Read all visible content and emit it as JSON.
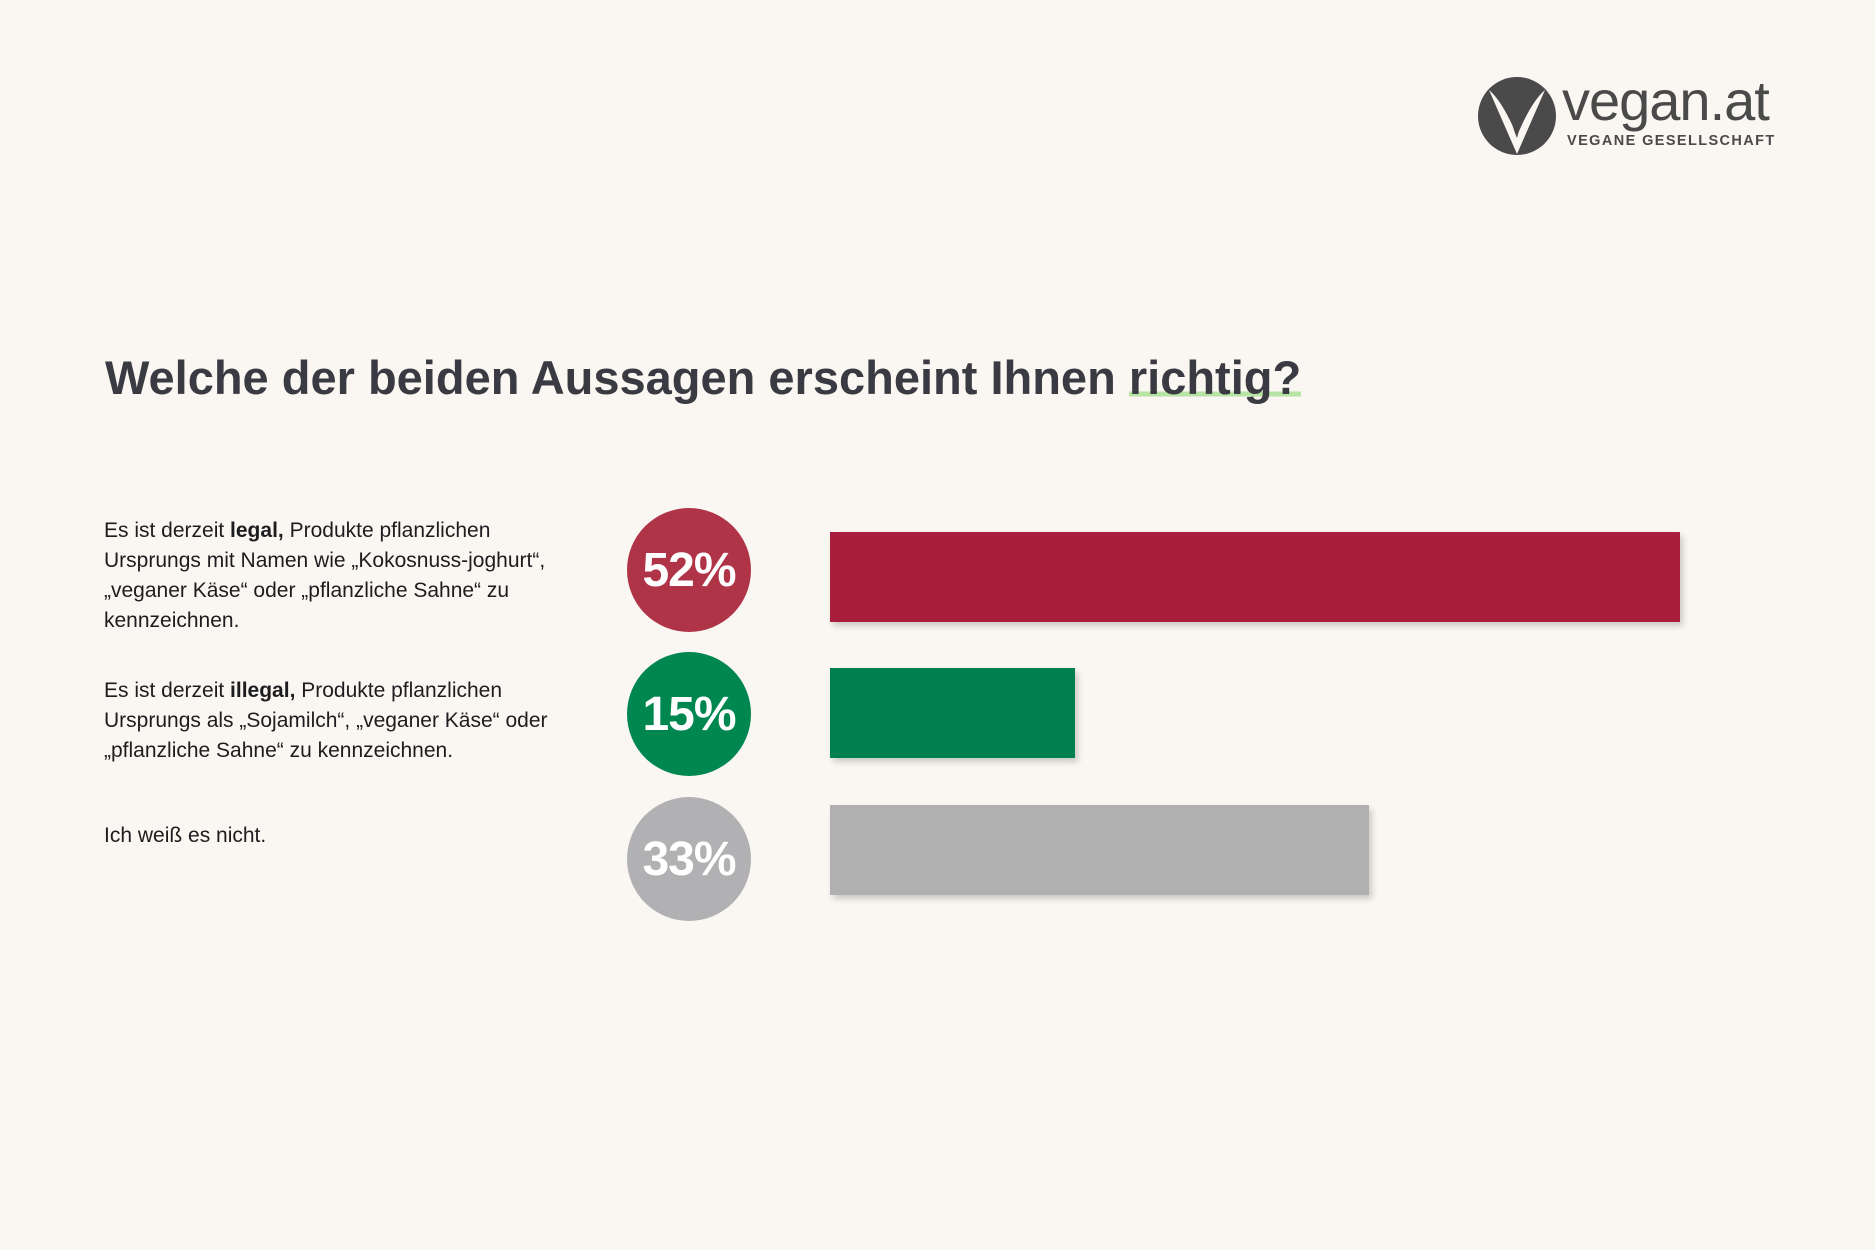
{
  "brand": {
    "name": "vegan.at",
    "tagline": "VEGANE GESELLSCHAFT",
    "logo_icon": "v-leaf-logo-icon",
    "logo_color": "#4a4a4a"
  },
  "title": {
    "main": "Welche der beiden Aussagen erscheint Ihnen",
    "highlight": "richtig?",
    "highlight_color": "#b7e3a5"
  },
  "options": [
    {
      "prefix": "Es ist derzeit ",
      "bold": "legal,",
      "suffix": " Produkte pflanzlichen Ursprungs mit Namen wie „Kokosnuss-joghurt“, „veganer Käse“ oder „pflanzliche Sahne“ zu kennzeichnen.",
      "value_label": "52%",
      "circle_color": "#b03448",
      "bar_color": "#a81e3c"
    },
    {
      "prefix": "Es ist derzeit ",
      "bold": "illegal,",
      "suffix": " Produkte pflanzlichen Ursprungs als „Sojamilch“, „veganer Käse“ oder „pflanzliche Sahne“ zu kennzeichnen.",
      "value_label": "15%",
      "circle_color": "#00864f",
      "bar_color": "#00804c"
    },
    {
      "prefix": "Ich weiß es nicht.",
      "bold": "",
      "suffix": "",
      "value_label": "33%",
      "circle_color": "#b1b1b3",
      "bar_color": "#b0b0b0"
    }
  ],
  "chart_data": {
    "type": "bar",
    "orientation": "horizontal",
    "title": "Welche der beiden Aussagen erscheint Ihnen richtig?",
    "categories": [
      "Es ist derzeit legal, Produkte pflanzlichen Ursprungs mit Namen wie „Kokosnuss-joghurt“, „veganer Käse“ oder „pflanzliche Sahne“ zu kennzeichnen.",
      "Es ist derzeit illegal, Produkte pflanzlichen Ursprungs als „Sojamilch“, „veganer Käse“ oder „pflanzliche Sahne“ zu kennzeichnen.",
      "Ich weiß es nicht."
    ],
    "values": [
      52,
      15,
      33
    ],
    "unit": "%",
    "xlim": [
      0,
      52
    ],
    "grid": false,
    "legend": "none",
    "colors": [
      "#a81e3c",
      "#00804c",
      "#b0b0b0"
    ]
  }
}
